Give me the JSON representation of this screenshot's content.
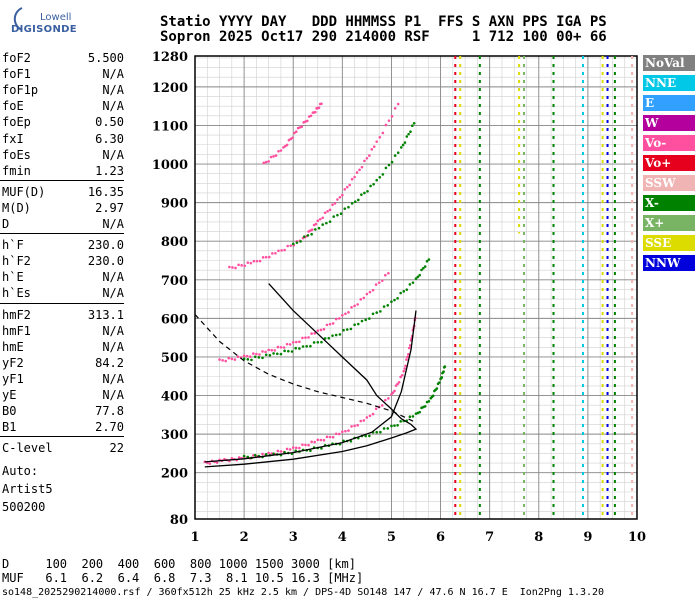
{
  "logo": {
    "top": "Lowell",
    "bottom": "DIGISONDE"
  },
  "header": {
    "line1": "Statio YYYY DAY   DDD HHMMSS P1  FFS S AXN PPS IGA PS",
    "line2": "Sopron 2025 Oct17 290 214000 RSF     1 712 100 00+ 66"
  },
  "params": [
    {
      "name": "foF2",
      "value": "5.500"
    },
    {
      "name": "foF1",
      "value": "N/A"
    },
    {
      "name": "foF1p",
      "value": "N/A"
    },
    {
      "name": "foE",
      "value": "N/A"
    },
    {
      "name": "foEp",
      "value": "0.50"
    },
    {
      "name": "fxI",
      "value": "6.30"
    },
    {
      "name": "foEs",
      "value": "N/A"
    },
    {
      "name": "fmin",
      "value": "1.23"
    },
    {
      "name": "MUF(D)",
      "value": "16.35"
    },
    {
      "name": "M(D)",
      "value": "2.97"
    },
    {
      "name": "D",
      "value": "N/A"
    },
    {
      "name": "h`F",
      "value": "230.0"
    },
    {
      "name": "h`F2",
      "value": "230.0"
    },
    {
      "name": "h`E",
      "value": "N/A"
    },
    {
      "name": "h`Es",
      "value": "N/A"
    },
    {
      "name": "hmF2",
      "value": "313.1"
    },
    {
      "name": "hmF1",
      "value": "N/A"
    },
    {
      "name": "hmE",
      "value": "N/A"
    },
    {
      "name": "yF2",
      "value": "84.2"
    },
    {
      "name": "yF1",
      "value": "N/A"
    },
    {
      "name": "yE",
      "value": "N/A"
    },
    {
      "name": "B0",
      "value": "77.8"
    },
    {
      "name": "B1",
      "value": "2.70"
    },
    {
      "name": "C-level",
      "value": "22"
    }
  ],
  "autoscaling": {
    "line1": "Auto:",
    "line2": "Artist5",
    "line3": "500200"
  },
  "legend": [
    {
      "label": "NoVal",
      "bg": "#808080",
      "fg": "#ffffff"
    },
    {
      "label": "NNE",
      "bg": "#00c8e6",
      "fg": "#ffffff"
    },
    {
      "label": "E",
      "bg": "#32a0ff",
      "fg": "#ffffff"
    },
    {
      "label": "W",
      "bg": "#b4009c",
      "fg": "#ffffff"
    },
    {
      "label": "Vo-",
      "bg": "#ff50a0",
      "fg": "#ffffff"
    },
    {
      "label": "Vo+",
      "bg": "#e6001e",
      "fg": "#ffffff"
    },
    {
      "label": "SSW",
      "bg": "#f0b4b4",
      "fg": "#ffffff"
    },
    {
      "label": "X-",
      "bg": "#008200",
      "fg": "#ffffff"
    },
    {
      "label": "X+",
      "bg": "#78b464",
      "fg": "#ffffff"
    },
    {
      "label": "SSE",
      "bg": "#dcdc00",
      "fg": "#ffffff"
    },
    {
      "label": "NNW",
      "bg": "#0000dc",
      "fg": "#ffffff"
    }
  ],
  "footer": {
    "line_d": "D     100  200  400  600  800 1000 1500 3000 [km]",
    "line_muf": "MUF   6.1  6.2  6.4  6.8  7.3  8.1 10.5 16.3 [MHz]",
    "line_file": "so148_2025290214000.rsf / 360fx512h 25 kHz 2.5 km / DPS-4D SO148 147 / 47.6 N 16.7 E  Ion2Png 1.3.20"
  },
  "chart_data": {
    "type": "scatter",
    "xlabel": "",
    "ylabel": "",
    "xlim": [
      1,
      10
    ],
    "ylim": [
      80,
      1280
    ],
    "x_ticks": [
      1,
      2,
      3,
      4,
      5,
      6,
      7,
      8,
      9,
      10
    ],
    "y_ticks": [
      80,
      200,
      300,
      400,
      500,
      600,
      700,
      800,
      900,
      1000,
      1100,
      1200,
      1280
    ],
    "grid": true,
    "series": [
      {
        "name": "Vo-",
        "color": "#ff50a0",
        "points": [
          [
            1.2,
            225
          ],
          [
            1.6,
            232
          ],
          [
            2.0,
            238
          ],
          [
            2.5,
            248
          ],
          [
            3.0,
            262
          ],
          [
            3.5,
            282
          ],
          [
            4.0,
            303
          ],
          [
            4.5,
            340
          ],
          [
            5.0,
            400
          ],
          [
            5.25,
            460
          ],
          [
            5.4,
            540
          ],
          [
            5.5,
            610
          ]
        ]
      },
      {
        "name": "X-",
        "color": "#008200",
        "points": [
          [
            2.0,
            240
          ],
          [
            2.6,
            246
          ],
          [
            3.2,
            256
          ],
          [
            3.8,
            272
          ],
          [
            4.4,
            292
          ],
          [
            5.0,
            318
          ],
          [
            5.5,
            350
          ],
          [
            5.8,
            390
          ],
          [
            6.0,
            440
          ],
          [
            6.1,
            480
          ]
        ]
      },
      {
        "name": "Vo-",
        "color": "#ff50a0",
        "points": [
          [
            1.5,
            490
          ],
          [
            2.0,
            500
          ],
          [
            2.5,
            515
          ],
          [
            3.0,
            535
          ],
          [
            3.5,
            565
          ],
          [
            4.0,
            605
          ],
          [
            4.5,
            660
          ],
          [
            5.0,
            725
          ]
        ]
      },
      {
        "name": "X-",
        "color": "#008200",
        "points": [
          [
            2.0,
            492
          ],
          [
            2.6,
            506
          ],
          [
            3.2,
            524
          ],
          [
            3.8,
            552
          ],
          [
            4.4,
            590
          ],
          [
            5.0,
            640
          ],
          [
            5.5,
            700
          ],
          [
            5.8,
            760
          ]
        ]
      },
      {
        "name": "Vo-",
        "color": "#ff50a0",
        "points": [
          [
            1.7,
            730
          ],
          [
            2.2,
            745
          ],
          [
            2.7,
            772
          ],
          [
            3.2,
            805
          ],
          [
            3.5,
            850
          ],
          [
            3.9,
            905
          ],
          [
            4.3,
            975
          ],
          [
            4.7,
            1055
          ],
          [
            5.2,
            1170
          ]
        ]
      },
      {
        "name": "X-",
        "color": "#008200",
        "points": [
          [
            3.0,
            790
          ],
          [
            3.6,
            840
          ],
          [
            4.2,
            895
          ],
          [
            4.7,
            955
          ],
          [
            5.2,
            1040
          ],
          [
            5.5,
            1115
          ]
        ]
      },
      {
        "name": "Vo-",
        "color": "#ff50a0",
        "points": [
          [
            2.4,
            1000
          ],
          [
            2.8,
            1040
          ],
          [
            3.1,
            1090
          ],
          [
            3.4,
            1130
          ],
          [
            3.6,
            1160
          ]
        ]
      }
    ],
    "profile": {
      "points": [
        [
          1.2,
          215
        ],
        [
          2,
          222
        ],
        [
          3,
          235
        ],
        [
          4,
          255
        ],
        [
          4.5,
          270
        ],
        [
          5.0,
          290
        ],
        [
          5.3,
          303
        ],
        [
          5.5,
          313
        ],
        [
          5.4,
          325
        ],
        [
          5.2,
          340
        ],
        [
          5.0,
          365
        ],
        [
          4.7,
          400
        ],
        [
          4.5,
          440
        ],
        [
          4.0,
          500
        ],
        [
          3.5,
          560
        ],
        [
          3.0,
          620
        ],
        [
          2.5,
          690
        ]
      ]
    },
    "virtual_height_fit": {
      "points": [
        [
          1.2,
          228
        ],
        [
          2,
          236
        ],
        [
          3,
          252
        ],
        [
          4,
          278
        ],
        [
          4.6,
          305
        ],
        [
          5.0,
          345
        ],
        [
          5.2,
          410
        ],
        [
          5.4,
          520
        ],
        [
          5.5,
          620
        ]
      ]
    },
    "dashed_model": {
      "points": [
        [
          1,
          610
        ],
        [
          1.5,
          540
        ],
        [
          2,
          490
        ],
        [
          2.5,
          455
        ],
        [
          3,
          430
        ],
        [
          3.5,
          410
        ],
        [
          4,
          395
        ],
        [
          4.5,
          380
        ],
        [
          5.0,
          360
        ],
        [
          5.5,
          330
        ]
      ]
    },
    "vertical_bands": [
      {
        "x": 6.3,
        "y": [
          80,
          1280
        ],
        "color": "#e6001e"
      },
      {
        "x": 6.4,
        "y": [
          80,
          1280
        ],
        "color": "#dcdc00"
      },
      {
        "x": 6.8,
        "y": [
          80,
          1280
        ],
        "color": "#008200"
      },
      {
        "x": 7.6,
        "y": [
          820,
          1280
        ],
        "color": "#dcdc00"
      },
      {
        "x": 7.7,
        "y": [
          80,
          1280
        ],
        "color": "#78b464"
      },
      {
        "x": 8.3,
        "y": [
          80,
          1280
        ],
        "color": "#008200"
      },
      {
        "x": 8.9,
        "y": [
          80,
          1280
        ],
        "color": "#00c8e6"
      },
      {
        "x": 9.3,
        "y": [
          80,
          1280
        ],
        "color": "#dcdc00"
      },
      {
        "x": 9.4,
        "y": [
          80,
          1280
        ],
        "color": "#0000dc"
      },
      {
        "x": 9.55,
        "y": [
          80,
          1280
        ],
        "color": "#008200"
      },
      {
        "x": 9.9,
        "y": [
          80,
          1280
        ],
        "color": "#f0b4b4"
      }
    ]
  }
}
